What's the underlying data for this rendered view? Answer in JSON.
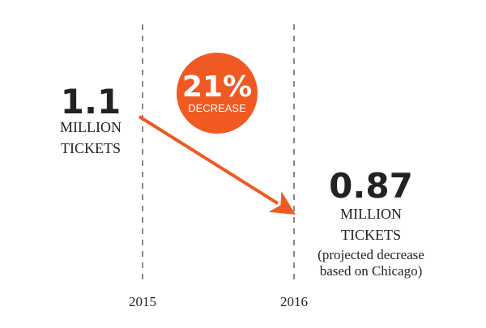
{
  "chart_data": {
    "type": "line",
    "x": [
      "2015",
      "2016"
    ],
    "series": [
      {
        "values": [
          1.1,
          0.87
        ]
      }
    ],
    "start": {
      "value": "1.1",
      "unit_line1": "MILLION",
      "unit_line2": "TICKETS"
    },
    "end": {
      "value": "0.87",
      "unit_line1": "MILLION",
      "unit_line2": "TICKETS",
      "note_line1": "(projected decrease",
      "note_line2": "based on Chicago)"
    },
    "badge": {
      "percent": "21%",
      "label": "DECREASE"
    },
    "grid": true,
    "colors": {
      "accent": "#f05a22",
      "gridline": "#888888",
      "text": "#222222"
    }
  }
}
